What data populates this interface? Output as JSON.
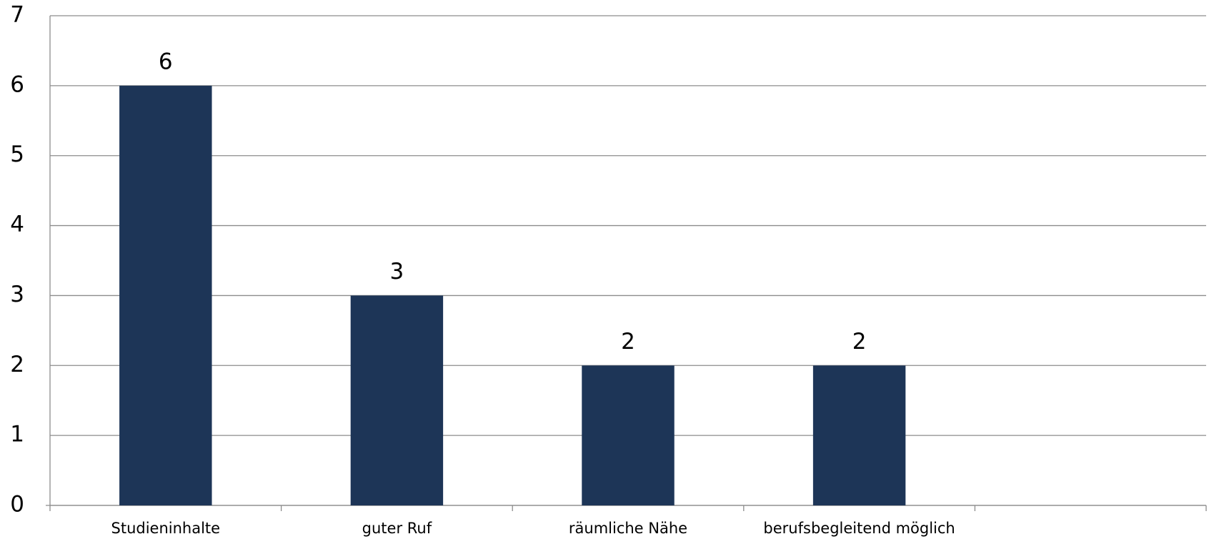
{
  "chart_data": {
    "type": "bar",
    "categories": [
      "Studieninhalte",
      "guter Ruf",
      "räumliche Nähe",
      "berufsbegleitend möglich",
      null
    ],
    "values": [
      6,
      3,
      2,
      2,
      null
    ],
    "color": "#1d3557",
    "ylim": [
      0,
      7
    ],
    "yticks": [
      0,
      1,
      2,
      3,
      4,
      5,
      6,
      7
    ],
    "grid": true
  }
}
